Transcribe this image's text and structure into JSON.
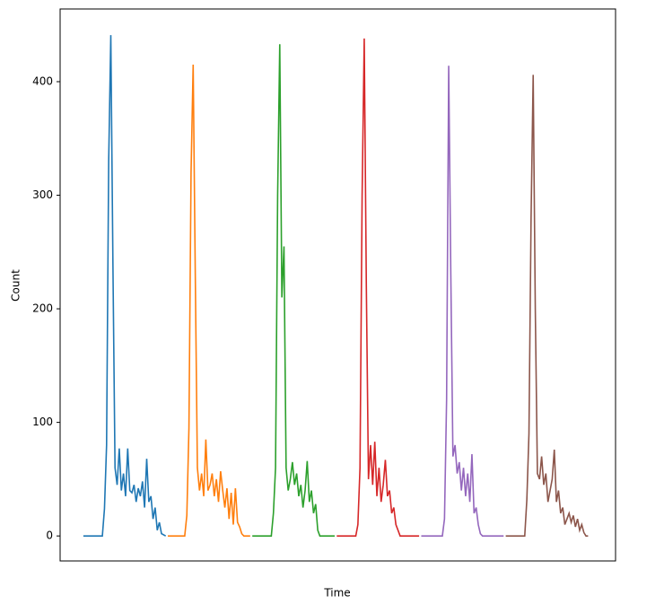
{
  "chart_data": {
    "type": "line",
    "xlabel": "Time",
    "ylabel": "Count",
    "xlim": [
      -11,
      252
    ],
    "ylim": [
      -22,
      464
    ],
    "yticks": [
      0,
      100,
      200,
      300,
      400
    ],
    "series": [
      {
        "color": "#1f77b4",
        "x": [
          0,
          9,
          10,
          11,
          12,
          13,
          14,
          15,
          16,
          17,
          18,
          19,
          20,
          21,
          22,
          23,
          24,
          25,
          26,
          27,
          28,
          29,
          30,
          31,
          32,
          33,
          34,
          35,
          36,
          37,
          39
        ],
        "values": [
          0,
          0,
          24,
          80,
          330,
          441,
          240,
          60,
          45,
          77,
          40,
          55,
          35,
          77,
          40,
          38,
          45,
          30,
          42,
          35,
          48,
          25,
          68,
          30,
          35,
          15,
          25,
          5,
          12,
          2,
          0
        ]
      },
      {
        "color": "#ff7f0e",
        "x": [
          40,
          48,
          49,
          50,
          51,
          52,
          53,
          54,
          55,
          56,
          57,
          58,
          59,
          60,
          61,
          62,
          63,
          64,
          65,
          66,
          67,
          68,
          69,
          70,
          71,
          72,
          73,
          74,
          75,
          76,
          79
        ],
        "values": [
          0,
          0,
          18,
          95,
          320,
          415,
          230,
          60,
          40,
          55,
          35,
          85,
          40,
          45,
          55,
          35,
          50,
          30,
          57,
          40,
          25,
          42,
          15,
          38,
          10,
          42,
          12,
          8,
          2,
          0,
          0
        ]
      },
      {
        "color": "#2ca02c",
        "x": [
          80,
          89,
          90,
          91,
          92,
          93,
          94,
          95,
          96,
          97,
          98,
          99,
          100,
          101,
          102,
          103,
          104,
          105,
          106,
          107,
          108,
          109,
          110,
          111,
          112,
          119
        ],
        "values": [
          0,
          0,
          20,
          60,
          300,
          433,
          210,
          255,
          60,
          40,
          50,
          65,
          45,
          55,
          35,
          45,
          25,
          40,
          66,
          30,
          40,
          20,
          28,
          5,
          0,
          0
        ]
      },
      {
        "color": "#d62728",
        "x": [
          120,
          129,
          130,
          131,
          132,
          133,
          134,
          135,
          136,
          137,
          138,
          139,
          140,
          141,
          142,
          143,
          144,
          145,
          146,
          147,
          148,
          149,
          150,
          159
        ],
        "values": [
          0,
          0,
          10,
          60,
          300,
          438,
          220,
          50,
          80,
          45,
          83,
          35,
          60,
          30,
          45,
          67,
          35,
          40,
          20,
          25,
          10,
          5,
          0,
          0
        ]
      },
      {
        "color": "#9467bd",
        "x": [
          160,
          170,
          171,
          172,
          173,
          174,
          175,
          176,
          177,
          178,
          179,
          180,
          181,
          182,
          183,
          184,
          185,
          186,
          187,
          188,
          189,
          199
        ],
        "values": [
          0,
          0,
          15,
          120,
          414,
          230,
          70,
          80,
          55,
          65,
          40,
          60,
          35,
          55,
          30,
          72,
          20,
          25,
          10,
          2,
          0,
          0
        ]
      },
      {
        "color": "#8c564b",
        "x": [
          200,
          209,
          210,
          211,
          212,
          213,
          214,
          215,
          216,
          217,
          218,
          219,
          220,
          221,
          222,
          223,
          224,
          225,
          226,
          227,
          228,
          229,
          230,
          231,
          232,
          233,
          234,
          235,
          236,
          237,
          238,
          239
        ],
        "values": [
          0,
          0,
          32,
          90,
          280,
          406,
          200,
          55,
          50,
          70,
          45,
          55,
          30,
          40,
          50,
          76,
          30,
          40,
          20,
          25,
          10,
          15,
          20,
          12,
          18,
          8,
          15,
          5,
          10,
          3,
          0,
          0
        ]
      }
    ]
  }
}
